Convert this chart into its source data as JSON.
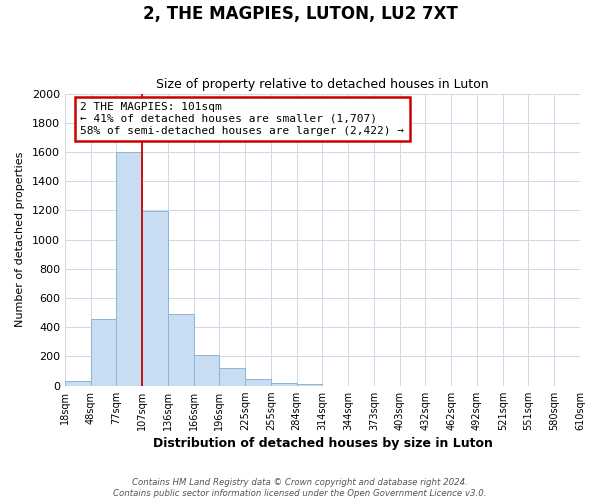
{
  "title": "2, THE MAGPIES, LUTON, LU2 7XT",
  "subtitle": "Size of property relative to detached houses in Luton",
  "xlabel": "Distribution of detached houses by size in Luton",
  "ylabel": "Number of detached properties",
  "bin_labels": [
    "18sqm",
    "48sqm",
    "77sqm",
    "107sqm",
    "136sqm",
    "166sqm",
    "196sqm",
    "225sqm",
    "255sqm",
    "284sqm",
    "314sqm",
    "344sqm",
    "373sqm",
    "403sqm",
    "432sqm",
    "462sqm",
    "492sqm",
    "521sqm",
    "551sqm",
    "580sqm",
    "610sqm"
  ],
  "bar_values": [
    35,
    455,
    1600,
    1195,
    490,
    210,
    120,
    45,
    20,
    15,
    0,
    0,
    0,
    0,
    0,
    0,
    0,
    0,
    0,
    0
  ],
  "bar_color": "#c9ddf2",
  "bar_edge_color": "#8db4d8",
  "vline_color": "#cc0000",
  "annotation_text": "2 THE MAGPIES: 101sqm\n← 41% of detached houses are smaller (1,707)\n58% of semi-detached houses are larger (2,422) →",
  "annotation_box_color": "white",
  "annotation_box_edgecolor": "#cc0000",
  "ylim": [
    0,
    2000
  ],
  "yticks": [
    0,
    200,
    400,
    600,
    800,
    1000,
    1200,
    1400,
    1600,
    1800,
    2000
  ],
  "footer_line1": "Contains HM Land Registry data © Crown copyright and database right 2024.",
  "footer_line2": "Contains public sector information licensed under the Open Government Licence v3.0.",
  "bg_color": "#ffffff",
  "grid_color": "#d0d8e8",
  "vline_bin_index": 3
}
